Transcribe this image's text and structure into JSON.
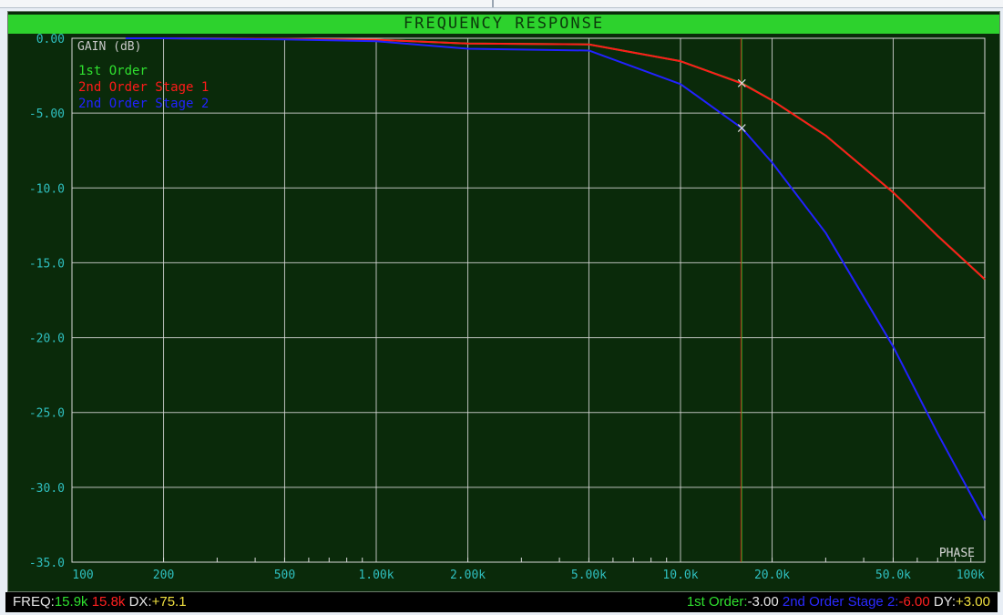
{
  "window": {
    "title": "FREQUENCY RESPONSE"
  },
  "colors": {
    "background": "#0a2a0a",
    "grid": "#d8d8d8",
    "axis_text": "#2fbfbf",
    "series_1st": "#2fe02f",
    "series_2nd_stage1": "#ff1a1a",
    "series_2nd_stage2": "#2222ff",
    "cursor": "#8a8a20"
  },
  "chart_data": {
    "type": "line",
    "title": "FREQUENCY RESPONSE",
    "ylabel": "GAIN (dB)",
    "right_label": "PHASE",
    "xscale": "log",
    "xlim": [
      100,
      100000
    ],
    "ylim": [
      -35,
      0
    ],
    "x_ticks": [
      100,
      200,
      500,
      1000,
      2000,
      5000,
      10000,
      20000,
      50000,
      100000
    ],
    "x_tick_labels": [
      "100",
      "200",
      "500",
      "1.00k",
      "2.00k",
      "5.00k",
      "10.0k",
      "20.0k",
      "50.0k",
      "100k"
    ],
    "y_ticks": [
      0,
      -5,
      -10,
      -15,
      -20,
      -25,
      -30,
      -35
    ],
    "y_tick_labels": [
      "0.00",
      "-5.00",
      "-10.0",
      "-15.0",
      "-20.0",
      "-25.0",
      "-30.0",
      "-35.0"
    ],
    "grid": true,
    "legend_position": "top-left",
    "series": [
      {
        "name": "1st Order",
        "color": "#2fe02f",
        "x": [
          150,
          200,
          500,
          1000,
          2000,
          5000,
          10000,
          15900,
          20000,
          30000,
          50000,
          70000,
          100000
        ],
        "y": [
          0,
          -0.0,
          -0.04,
          -0.1,
          -0.35,
          -0.41,
          -1.53,
          -3.0,
          -4.15,
          -6.5,
          -10.3,
          -13.2,
          -16.1
        ]
      },
      {
        "name": "2nd Order Stage 1",
        "color": "#ff1a1a",
        "x": [
          150,
          200,
          500,
          1000,
          2000,
          5000,
          10000,
          15800,
          20000,
          30000,
          50000,
          70000,
          100000
        ],
        "y": [
          0,
          -0.0,
          -0.04,
          -0.1,
          -0.35,
          -0.41,
          -1.53,
          -3.0,
          -4.15,
          -6.5,
          -10.3,
          -13.2,
          -16.1
        ]
      },
      {
        "name": "2nd Order Stage 2",
        "color": "#2222ff",
        "x": [
          150,
          200,
          500,
          1000,
          2000,
          5000,
          10000,
          15900,
          20000,
          30000,
          50000,
          70000,
          100000
        ],
        "y": [
          0,
          -0.0,
          -0.08,
          -0.2,
          -0.7,
          -0.82,
          -3.06,
          -6.0,
          -8.3,
          -13.0,
          -20.6,
          -26.4,
          -32.2
        ]
      }
    ],
    "cursors": [
      {
        "x": 15900,
        "color": "#2fe02f"
      },
      {
        "x": 15800,
        "color": "#ff1a1a"
      }
    ],
    "markers": [
      {
        "x": 15900,
        "y": -3.0
      },
      {
        "x": 15900,
        "y": -6.0
      }
    ]
  },
  "status": {
    "freq_label": "FREQ:",
    "freq_value1": "15.9k",
    "freq_value2": "15.8k",
    "dx_label": "DX:",
    "dx_value": "+75.1",
    "first_order_label": "1st Order:",
    "first_order_value": "-3.00",
    "stage2_label": "2nd Order Stage 2:",
    "stage2_value": "-6.00",
    "dy_label": "DY:",
    "dy_value": "+3.00"
  }
}
